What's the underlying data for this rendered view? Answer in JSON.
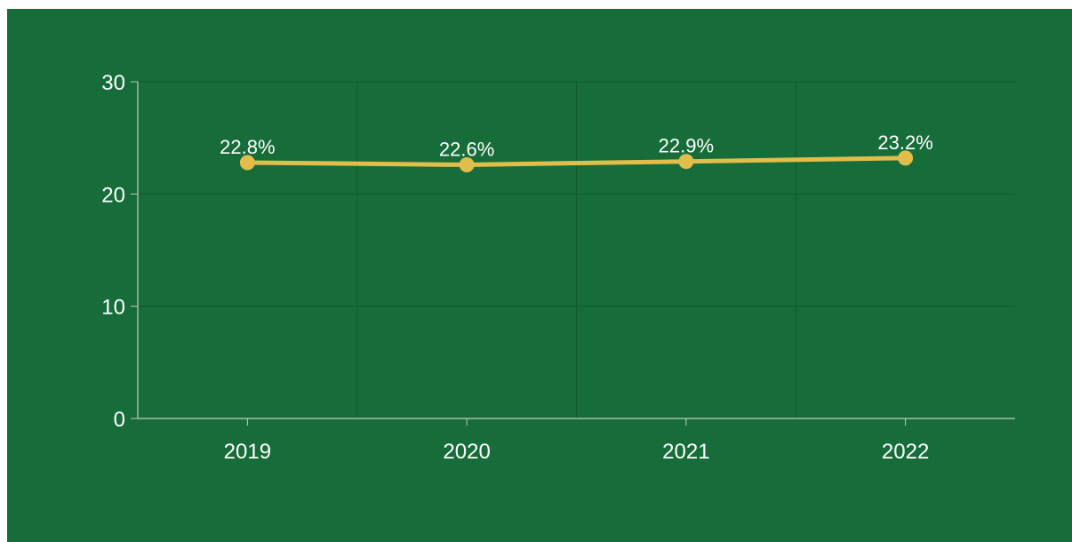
{
  "colors": {
    "background": "#166d39",
    "line": "#e2bd4c",
    "text": "#ffffff",
    "axis": "#c9c9c9",
    "grid": "#0e5a2a"
  },
  "chart_data": {
    "type": "line",
    "title": "",
    "xlabel": "",
    "ylabel": "",
    "categories": [
      "2019",
      "2020",
      "2021",
      "2022"
    ],
    "series": [
      {
        "values": [
          22.8,
          22.6,
          22.9,
          23.2
        ]
      }
    ],
    "data_labels": [
      "22.8%",
      "22.6%",
      "22.9%",
      "23.2%"
    ],
    "ylim": [
      0,
      30
    ],
    "yticks": [
      "0",
      "10",
      "20",
      "30"
    ],
    "grid": true,
    "legend": "none"
  }
}
